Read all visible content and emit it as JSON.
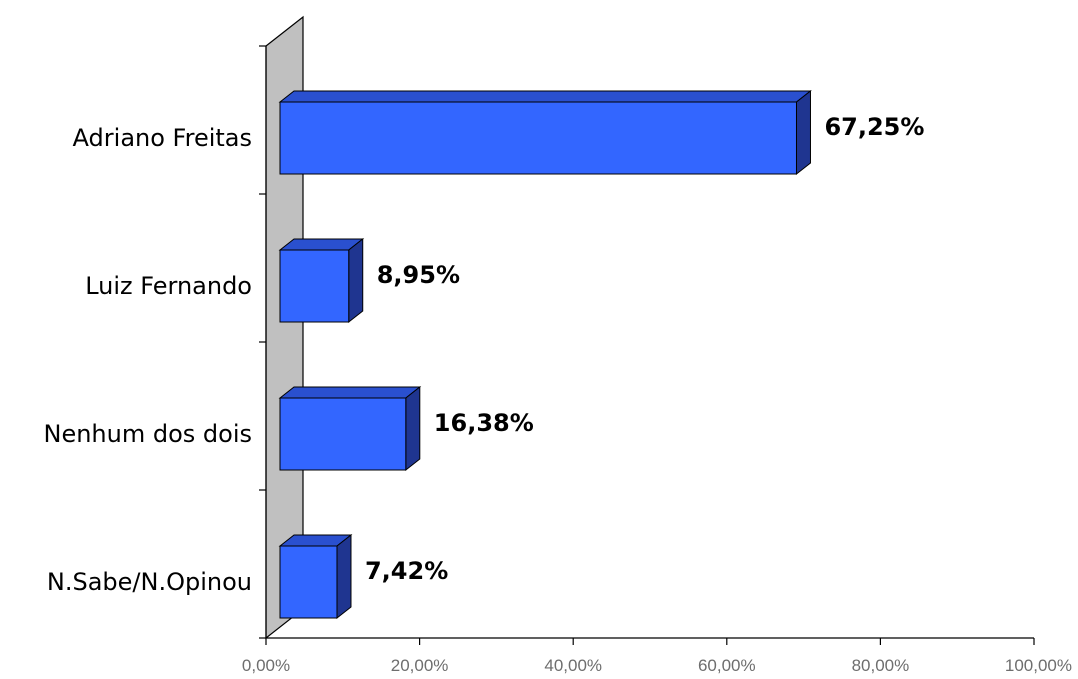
{
  "chart_data": {
    "type": "bar",
    "orientation": "horizontal",
    "categories": [
      "Adriano Freitas",
      "Luiz Fernando",
      "Nenhum dos dois",
      "N.Sabe/N.Opinou"
    ],
    "values": [
      67.25,
      8.95,
      16.38,
      7.42
    ],
    "value_labels": [
      "67,25%",
      "8,95%",
      "16,38%",
      "7,42%"
    ],
    "xlim": [
      0,
      100
    ],
    "x_ticks": [
      0,
      20,
      40,
      60,
      80,
      100
    ],
    "x_tick_labels": [
      "0,00%",
      "20,00%",
      "40,00%",
      "60,00%",
      "80,00%",
      "100,00%"
    ],
    "title": "",
    "xlabel": "",
    "ylabel": "",
    "grid": false,
    "legend": "none",
    "style": "3d"
  },
  "colors": {
    "bar_front": "#3366ff",
    "bar_top": "#2a50cf",
    "bar_side": "#1f3590",
    "wall": "#c0c0c0",
    "axis": "#000000",
    "tick_text": "#6e6e6e"
  }
}
